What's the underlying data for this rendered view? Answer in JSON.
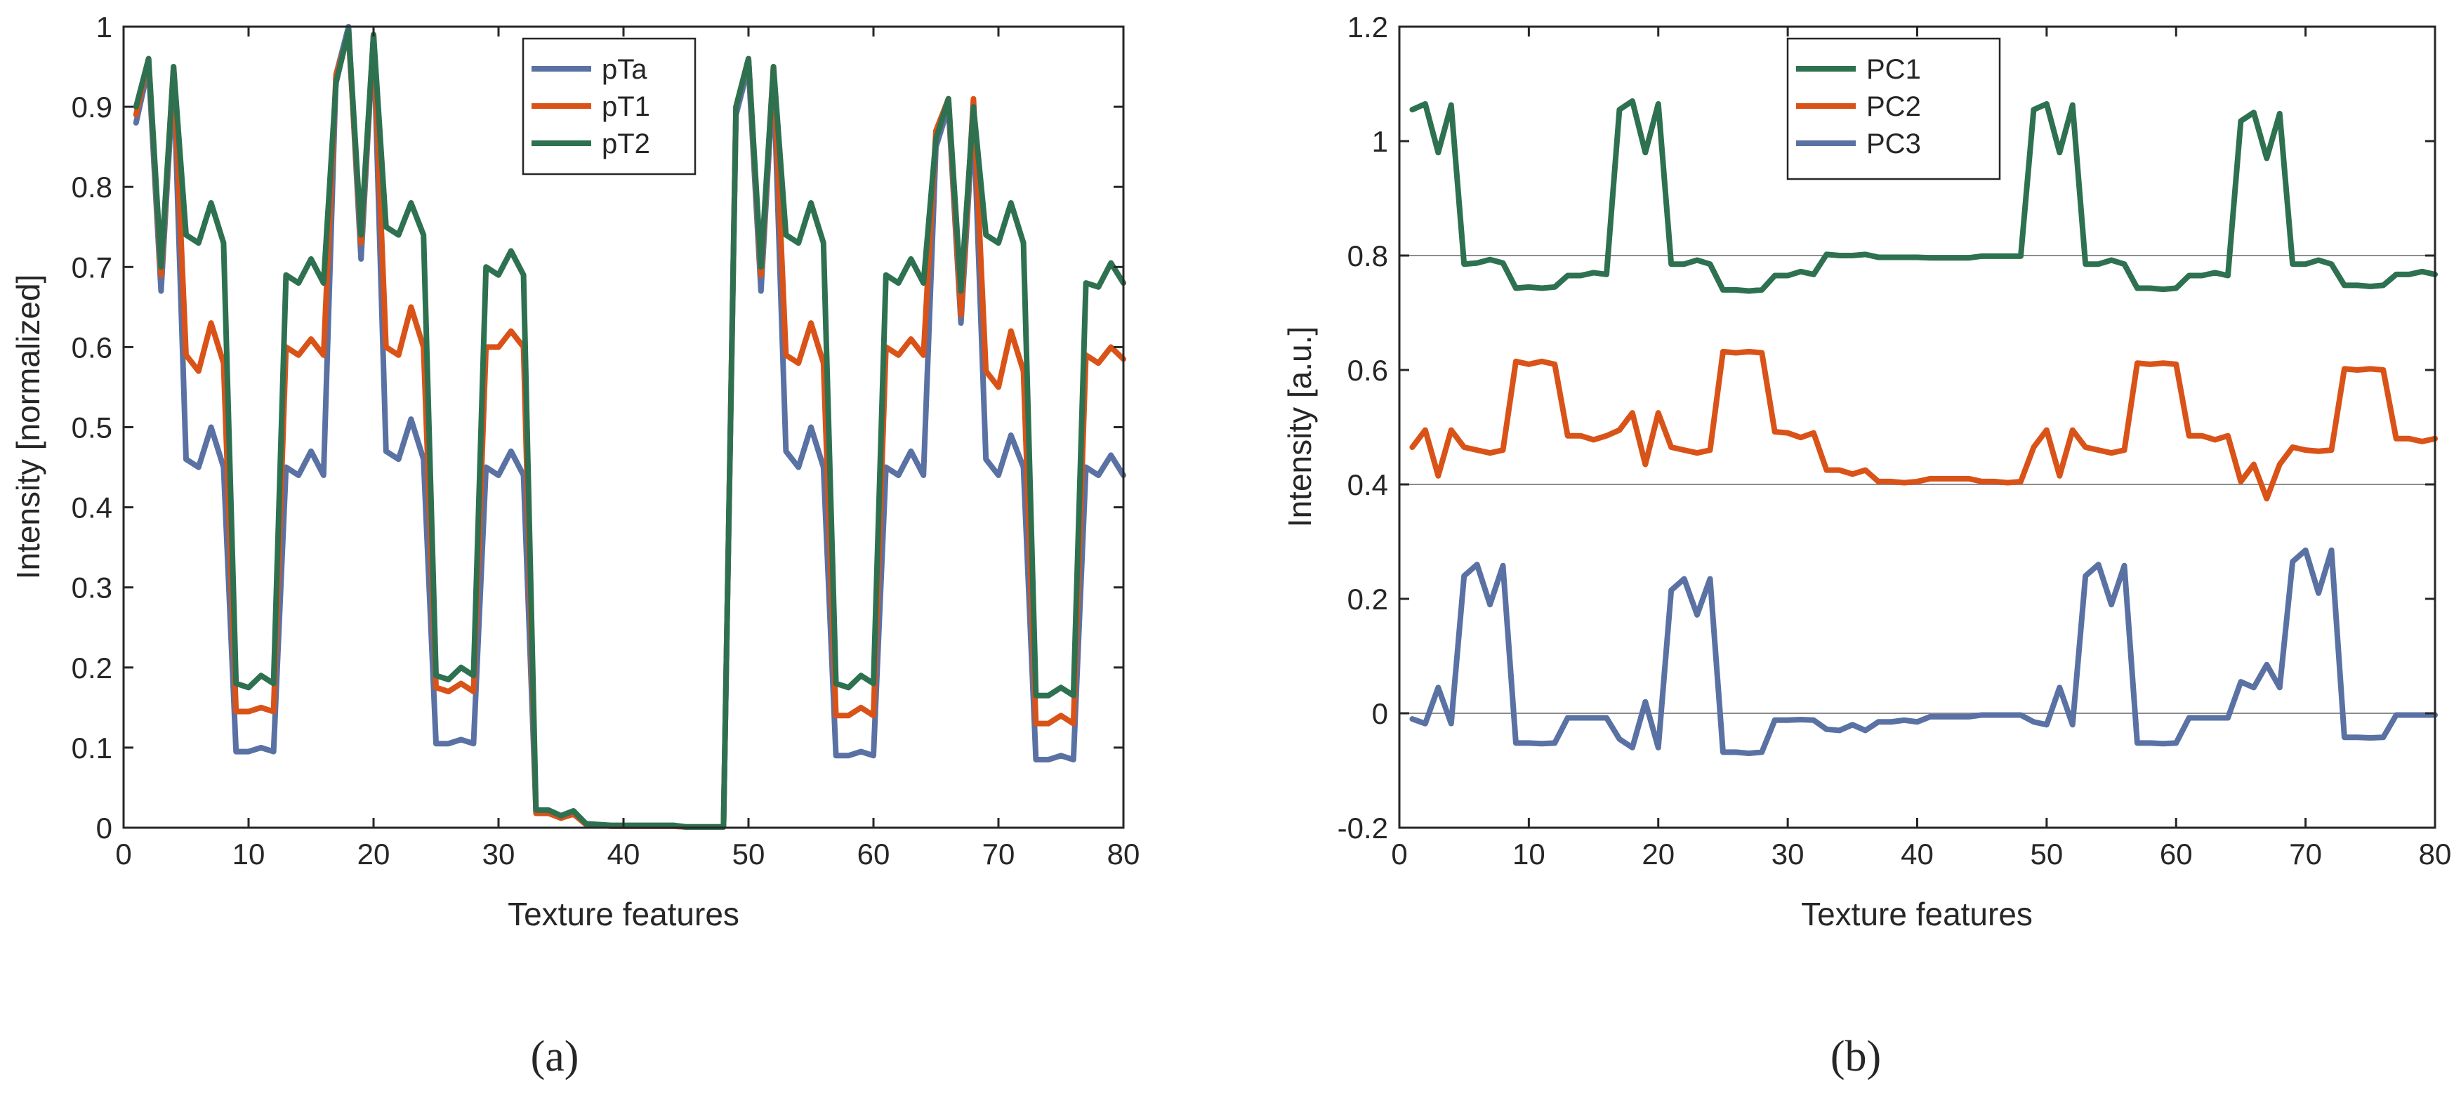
{
  "chart_data": [
    {
      "type": "line",
      "panel_label": "(a)",
      "title": "",
      "xlabel": "Texture features",
      "ylabel": "Intensity [normalized]",
      "xlim": [
        0,
        80
      ],
      "ylim": [
        0,
        1
      ],
      "xticks": [
        0,
        10,
        20,
        30,
        40,
        50,
        60,
        70,
        80
      ],
      "yticks": [
        0,
        0.1,
        0.2,
        0.3,
        0.4,
        0.5,
        0.6,
        0.7,
        0.8,
        0.9,
        1
      ],
      "ytick_labels": [
        "0",
        "0.1",
        "0.2",
        "0.3",
        "0.4",
        "0.5",
        "0.6",
        "0.7",
        "0.8",
        "0.9",
        "1"
      ],
      "grid": false,
      "legend_position": "top-right",
      "x": [
        1,
        2,
        3,
        4,
        5,
        6,
        7,
        8,
        9,
        10,
        11,
        12,
        13,
        14,
        15,
        16,
        17,
        18,
        19,
        20,
        21,
        22,
        23,
        24,
        25,
        26,
        27,
        28,
        29,
        30,
        31,
        32,
        33,
        34,
        35,
        36,
        37,
        38,
        39,
        40,
        41,
        42,
        43,
        44,
        45,
        46,
        47,
        48,
        49,
        50,
        51,
        52,
        53,
        54,
        55,
        56,
        57,
        58,
        59,
        60,
        61,
        62,
        63,
        64,
        65,
        66,
        67,
        68,
        69,
        70,
        71,
        72,
        73,
        74,
        75,
        76,
        77,
        78,
        79,
        80
      ],
      "series": [
        {
          "name": "pTa",
          "color": "#5a71a3",
          "values": [
            0.88,
            0.95,
            0.67,
            0.94,
            0.46,
            0.45,
            0.5,
            0.45,
            0.095,
            0.095,
            0.1,
            0.095,
            0.45,
            0.44,
            0.47,
            0.44,
            0.94,
            1.0,
            0.71,
            0.99,
            0.47,
            0.46,
            0.51,
            0.46,
            0.105,
            0.105,
            0.11,
            0.105,
            0.45,
            0.44,
            0.47,
            0.44,
            0.02,
            0.02,
            0.012,
            0.018,
            0.004,
            0.003,
            0.002,
            0.002,
            0.002,
            0.002,
            0.002,
            0.002,
            0.001,
            0.001,
            0.001,
            0.001,
            0.89,
            0.95,
            0.67,
            0.94,
            0.47,
            0.45,
            0.5,
            0.45,
            0.09,
            0.09,
            0.095,
            0.09,
            0.45,
            0.44,
            0.47,
            0.44,
            0.85,
            0.9,
            0.63,
            0.89,
            0.46,
            0.44,
            0.49,
            0.45,
            0.085,
            0.085,
            0.09,
            0.085,
            0.45,
            0.44,
            0.465,
            0.44
          ]
        },
        {
          "name": "pT1",
          "color": "#d95319",
          "values": [
            0.89,
            0.96,
            0.69,
            0.95,
            0.59,
            0.57,
            0.63,
            0.58,
            0.145,
            0.145,
            0.15,
            0.145,
            0.6,
            0.59,
            0.61,
            0.59,
            0.94,
            0.99,
            0.73,
            0.99,
            0.6,
            0.59,
            0.65,
            0.6,
            0.175,
            0.17,
            0.18,
            0.17,
            0.6,
            0.6,
            0.62,
            0.6,
            0.018,
            0.018,
            0.012,
            0.017,
            0.004,
            0.003,
            0.002,
            0.002,
            0.002,
            0.002,
            0.002,
            0.002,
            0.001,
            0.001,
            0.001,
            0.001,
            0.9,
            0.96,
            0.69,
            0.95,
            0.59,
            0.58,
            0.63,
            0.58,
            0.14,
            0.14,
            0.15,
            0.14,
            0.6,
            0.59,
            0.61,
            0.59,
            0.87,
            0.91,
            0.64,
            0.91,
            0.57,
            0.55,
            0.62,
            0.57,
            0.13,
            0.13,
            0.14,
            0.13,
            0.59,
            0.58,
            0.6,
            0.585
          ]
        },
        {
          "name": "pT2",
          "color": "#2e7150",
          "values": [
            0.9,
            0.96,
            0.7,
            0.95,
            0.74,
            0.73,
            0.78,
            0.73,
            0.18,
            0.175,
            0.19,
            0.18,
            0.69,
            0.68,
            0.71,
            0.68,
            0.93,
            0.995,
            0.74,
            0.99,
            0.75,
            0.74,
            0.78,
            0.74,
            0.19,
            0.185,
            0.2,
            0.19,
            0.7,
            0.69,
            0.72,
            0.69,
            0.022,
            0.022,
            0.015,
            0.021,
            0.005,
            0.004,
            0.003,
            0.003,
            0.003,
            0.003,
            0.003,
            0.003,
            0.001,
            0.001,
            0.001,
            0.001,
            0.9,
            0.96,
            0.7,
            0.95,
            0.74,
            0.73,
            0.78,
            0.73,
            0.18,
            0.175,
            0.19,
            0.18,
            0.69,
            0.68,
            0.71,
            0.68,
            0.86,
            0.91,
            0.67,
            0.9,
            0.74,
            0.73,
            0.78,
            0.73,
            0.165,
            0.165,
            0.175,
            0.165,
            0.68,
            0.675,
            0.705,
            0.68
          ]
        }
      ]
    },
    {
      "type": "line",
      "panel_label": "(b)",
      "title": "",
      "xlabel": "Texture features",
      "ylabel": "Intensity [a.u.]",
      "xlim": [
        0,
        80
      ],
      "ylim": [
        -0.2,
        1.2
      ],
      "xticks": [
        0,
        10,
        20,
        30,
        40,
        50,
        60,
        70,
        80
      ],
      "yticks": [
        -0.2,
        0,
        0.2,
        0.4,
        0.6,
        0.8,
        1,
        1.2
      ],
      "ytick_labels": [
        "-0.2",
        "0",
        "0.2",
        "0.4",
        "0.6",
        "0.8",
        "1",
        "1.2"
      ],
      "reference_lines": [
        0,
        0.4,
        0.8
      ],
      "grid": false,
      "legend_position": "top-center",
      "x": [
        1,
        2,
        3,
        4,
        5,
        6,
        7,
        8,
        9,
        10,
        11,
        12,
        13,
        14,
        15,
        16,
        17,
        18,
        19,
        20,
        21,
        22,
        23,
        24,
        25,
        26,
        27,
        28,
        29,
        30,
        31,
        32,
        33,
        34,
        35,
        36,
        37,
        38,
        39,
        40,
        41,
        42,
        43,
        44,
        45,
        46,
        47,
        48,
        49,
        50,
        51,
        52,
        53,
        54,
        55,
        56,
        57,
        58,
        59,
        60,
        61,
        62,
        63,
        64,
        65,
        66,
        67,
        68,
        69,
        70,
        71,
        72,
        73,
        74,
        75,
        76,
        77,
        78,
        79,
        80
      ],
      "series": [
        {
          "name": "PC1",
          "color": "#2e7150",
          "values": [
            1.055,
            1.065,
            0.98,
            1.063,
            0.785,
            0.787,
            0.793,
            0.787,
            0.743,
            0.745,
            0.743,
            0.745,
            0.765,
            0.765,
            0.77,
            0.767,
            1.055,
            1.07,
            0.98,
            1.065,
            0.785,
            0.785,
            0.792,
            0.785,
            0.74,
            0.74,
            0.738,
            0.74,
            0.765,
            0.765,
            0.772,
            0.767,
            0.802,
            0.8,
            0.8,
            0.802,
            0.797,
            0.797,
            0.797,
            0.797,
            0.796,
            0.796,
            0.796,
            0.796,
            0.799,
            0.799,
            0.799,
            0.799,
            1.055,
            1.065,
            0.98,
            1.063,
            0.785,
            0.785,
            0.792,
            0.785,
            0.743,
            0.743,
            0.741,
            0.743,
            0.765,
            0.765,
            0.77,
            0.765,
            1.035,
            1.05,
            0.97,
            1.048,
            0.785,
            0.785,
            0.792,
            0.785,
            0.748,
            0.748,
            0.746,
            0.748,
            0.767,
            0.767,
            0.772,
            0.767
          ]
        },
        {
          "name": "PC2",
          "color": "#d95319",
          "values": [
            0.465,
            0.495,
            0.415,
            0.495,
            0.465,
            0.46,
            0.455,
            0.46,
            0.615,
            0.61,
            0.615,
            0.61,
            0.485,
            0.485,
            0.478,
            0.485,
            0.495,
            0.525,
            0.435,
            0.525,
            0.465,
            0.46,
            0.455,
            0.46,
            0.632,
            0.63,
            0.632,
            0.63,
            0.492,
            0.49,
            0.482,
            0.49,
            0.425,
            0.425,
            0.418,
            0.425,
            0.405,
            0.405,
            0.403,
            0.405,
            0.41,
            0.41,
            0.41,
            0.41,
            0.405,
            0.405,
            0.403,
            0.405,
            0.465,
            0.495,
            0.415,
            0.495,
            0.465,
            0.46,
            0.455,
            0.46,
            0.612,
            0.61,
            0.612,
            0.61,
            0.485,
            0.485,
            0.478,
            0.485,
            0.405,
            0.435,
            0.375,
            0.435,
            0.465,
            0.46,
            0.458,
            0.46,
            0.602,
            0.6,
            0.602,
            0.6,
            0.48,
            0.48,
            0.475,
            0.48
          ]
        },
        {
          "name": "PC3",
          "color": "#5a71a3",
          "values": [
            -0.01,
            -0.018,
            0.045,
            -0.018,
            0.24,
            0.26,
            0.19,
            0.258,
            -0.052,
            -0.052,
            -0.053,
            -0.052,
            -0.008,
            -0.008,
            -0.008,
            -0.008,
            -0.045,
            -0.06,
            0.02,
            -0.06,
            0.215,
            0.235,
            0.172,
            0.235,
            -0.068,
            -0.068,
            -0.07,
            -0.068,
            -0.012,
            -0.012,
            -0.011,
            -0.012,
            -0.028,
            -0.03,
            -0.02,
            -0.03,
            -0.015,
            -0.015,
            -0.012,
            -0.015,
            -0.006,
            -0.006,
            -0.006,
            -0.006,
            -0.003,
            -0.003,
            -0.003,
            -0.003,
            -0.015,
            -0.02,
            0.045,
            -0.02,
            0.24,
            0.26,
            0.19,
            0.258,
            -0.052,
            -0.052,
            -0.053,
            -0.052,
            -0.008,
            -0.008,
            -0.008,
            -0.008,
            0.055,
            0.045,
            0.085,
            0.045,
            0.265,
            0.285,
            0.21,
            0.285,
            -0.042,
            -0.042,
            -0.043,
            -0.042,
            -0.003,
            -0.003,
            -0.003,
            -0.003
          ]
        }
      ]
    }
  ]
}
